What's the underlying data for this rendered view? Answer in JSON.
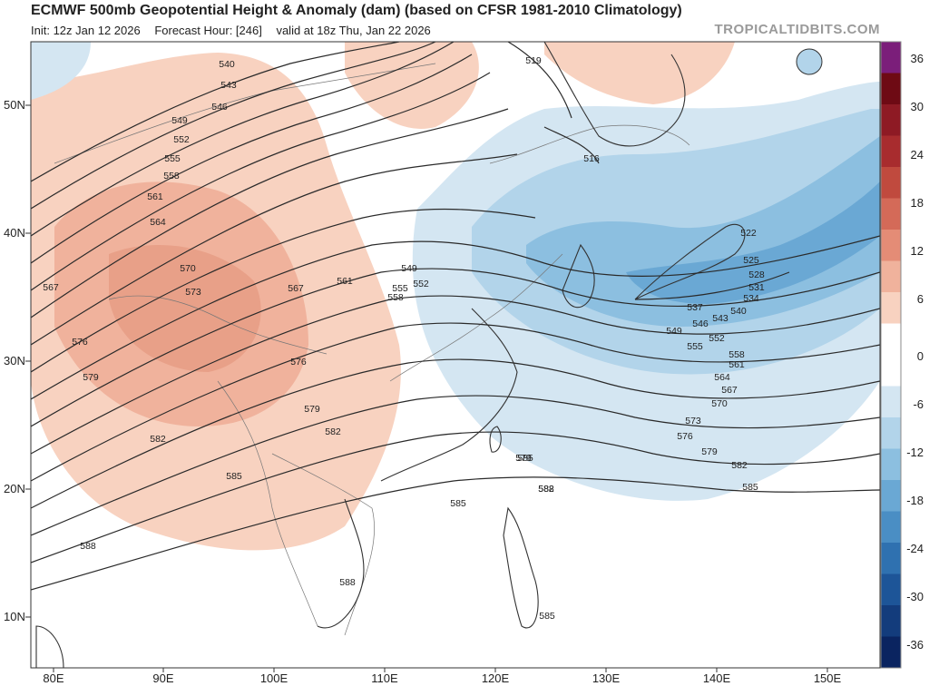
{
  "header": {
    "title": "ECMWF 500mb Geopotential Height & Anomaly (dam) (based on CFSR 1981-2010 Climatology)",
    "init": "Init: 12z Jan 12 2026",
    "forecast_hour": "Forecast Hour: [246]",
    "valid": "valid at 18z Thu, Jan 22 2026",
    "brand": "TROPICALTIDBITS.COM"
  },
  "map": {
    "lat_labels": [
      "50N",
      "40N",
      "30N",
      "20N",
      "10N"
    ],
    "lon_labels": [
      "80E",
      "90E",
      "100E",
      "110E",
      "120E",
      "130E",
      "140E",
      "150E"
    ],
    "contour_labels": [
      "540",
      "543",
      "546",
      "549",
      "552",
      "555",
      "558",
      "561",
      "564",
      "567",
      "570",
      "573",
      "576",
      "579",
      "582",
      "585",
      "588",
      "519",
      "516",
      "522",
      "525",
      "528",
      "531",
      "534",
      "537",
      "540",
      "543",
      "546",
      "549",
      "552",
      "555",
      "558",
      "561",
      "564",
      "567",
      "570",
      "573",
      "576",
      "579",
      "582",
      "585",
      "549",
      "552",
      "555",
      "558",
      "561",
      "567",
      "576",
      "579",
      "582",
      "585",
      "588",
      "585",
      "588",
      "585",
      "579",
      "582"
    ]
  },
  "colorbar": {
    "labels": [
      "36",
      "30",
      "24",
      "18",
      "12",
      "6",
      "0",
      "-6",
      "-12",
      "-18",
      "-24",
      "-30",
      "-36"
    ],
    "colors": [
      "#7b1e7a",
      "#6e0a14",
      "#8e1a24",
      "#a82c2e",
      "#c04a3e",
      "#d46a58",
      "#e48c76",
      "#f0b29c",
      "#f8d2c0",
      "#ffffff",
      "#ffffff",
      "#d4e6f2",
      "#b2d4ea",
      "#8cbfe0",
      "#6aa8d4",
      "#4a8ec4",
      "#2f71b0",
      "#1d5598",
      "#133c7c",
      "#0a2460"
    ]
  }
}
